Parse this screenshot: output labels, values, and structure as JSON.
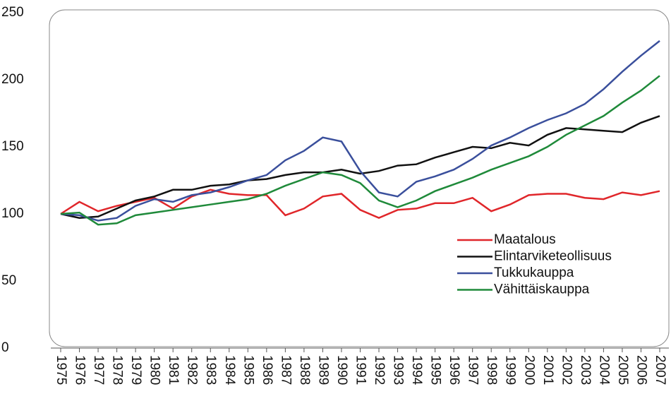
{
  "chart_data": {
    "type": "line",
    "categories": [
      "1975",
      "1976",
      "1977",
      "1978",
      "1979",
      "1980",
      "1981",
      "1982",
      "1983",
      "1984",
      "1985",
      "1986",
      "1987",
      "1988",
      "1989",
      "1990",
      "1991",
      "1992",
      "1993",
      "1994",
      "1995",
      "1996",
      "1997",
      "1998",
      "1999",
      "2000",
      "2001",
      "2002",
      "2003",
      "2004",
      "2005",
      "2006",
      "2007"
    ],
    "series": [
      {
        "name": "Maatalous",
        "color": "#e0262a",
        "values": [
          100,
          109,
          102,
          106,
          109,
          112,
          104,
          113,
          118,
          115,
          114,
          114,
          99,
          104,
          113,
          115,
          103,
          97,
          103,
          104,
          108,
          108,
          112,
          102,
          107,
          114,
          115,
          115,
          112,
          111,
          116,
          114,
          117
        ]
      },
      {
        "name": "Elintarviketeollisuus",
        "color": "#111111",
        "values": [
          100,
          97,
          98,
          104,
          110,
          113,
          118,
          118,
          121,
          122,
          125,
          126,
          129,
          131,
          131,
          133,
          130,
          132,
          136,
          137,
          142,
          146,
          150,
          149,
          153,
          151,
          159,
          164,
          163,
          162,
          161,
          168,
          173
        ]
      },
      {
        "name": "Tukkukauppa",
        "color": "#3a4f9c",
        "values": [
          100,
          99,
          95,
          97,
          106,
          111,
          109,
          114,
          116,
          120,
          125,
          129,
          140,
          147,
          157,
          154,
          132,
          116,
          113,
          124,
          128,
          133,
          141,
          151,
          157,
          164,
          170,
          175,
          182,
          193,
          206,
          218,
          229
        ]
      },
      {
        "name": "Vähittäiskauppa",
        "color": "#1f8a3a",
        "values": [
          100,
          101,
          92,
          93,
          99,
          101,
          103,
          105,
          107,
          109,
          111,
          115,
          121,
          126,
          131,
          129,
          123,
          110,
          105,
          110,
          117,
          122,
          127,
          133,
          138,
          143,
          150,
          159,
          166,
          173,
          183,
          192,
          203
        ]
      }
    ],
    "ylim": [
      0,
      250
    ],
    "yticks": [
      0,
      50,
      100,
      150,
      200,
      250
    ],
    "legend": "right"
  }
}
